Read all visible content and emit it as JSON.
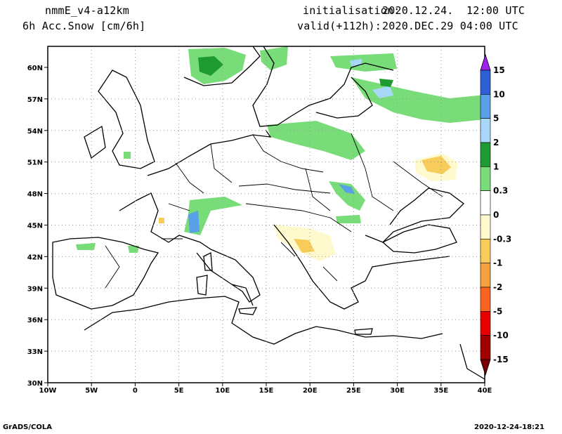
{
  "header": {
    "model": "nmmE_v4-a12km",
    "variable": "6h Acc.Snow [cm/6h]",
    "init_label": "initialisation:",
    "init_value": "2020.12.24.  12:00 UTC",
    "valid_label": "valid(+112h):",
    "valid_value": "2020.DEC.29 04:00 UTC"
  },
  "map": {
    "lon_range": [
      -10,
      40
    ],
    "lat_range": [
      30,
      62
    ],
    "lon_ticks": [
      "10W",
      "5W",
      "0",
      "5E",
      "10E",
      "15E",
      "20E",
      "25E",
      "30E",
      "35E",
      "40E"
    ],
    "lat_ticks": [
      "60N",
      "57N",
      "54N",
      "51N",
      "48N",
      "45N",
      "42N",
      "39N",
      "36N",
      "33N",
      "30N"
    ],
    "grid": true
  },
  "colorbar": {
    "labels": [
      "15",
      "10",
      "5",
      "2",
      "1",
      "0.3",
      "0",
      "-0.3",
      "-1",
      "-2",
      "-5",
      "-10",
      "-15"
    ],
    "colors": [
      "#a020f0",
      "#2f5fd6",
      "#5aa0e8",
      "#a8d8f8",
      "#1e9a32",
      "#78dc78",
      "#ffffff",
      "#fffacd",
      "#f8cc5a",
      "#f6a040",
      "#fa6420",
      "#e60000",
      "#a00000",
      "#780000"
    ]
  },
  "footer": {
    "left": "GrADS/COLA",
    "right": "2020-12-24-18:21"
  }
}
